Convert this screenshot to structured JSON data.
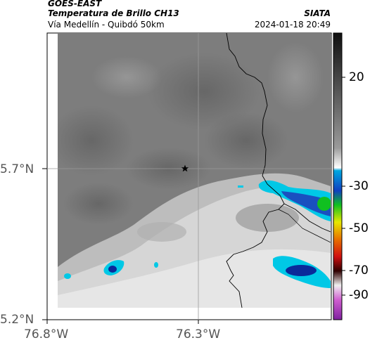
{
  "header": {
    "satellite": "GOES-EAST",
    "product": "Temperatura de Brillo CH13",
    "region": "Vía Medellín - Quibdó 50km",
    "source": "SIATA",
    "timestamp": "2024-01-18 20:49"
  },
  "map": {
    "lat_ticks": [
      "5.7°N",
      "5.2°N"
    ],
    "lon_ticks": [
      "76.8°W",
      "76.3°W"
    ],
    "marker_icon": "star-icon"
  },
  "colorbar": {
    "ticks": [
      "20",
      "-30",
      "-50",
      "-70",
      "-90"
    ],
    "colors": {
      "warm_gray": "#7a7a7a",
      "cyan": "#00c8e6",
      "blue": "#0a2a9a",
      "green": "#10c020",
      "yellow": "#e8e800",
      "red": "#d01010",
      "magenta": "#c030c0"
    }
  }
}
